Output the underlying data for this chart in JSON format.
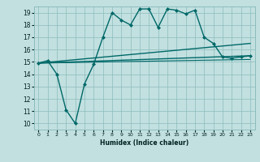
{
  "bg_color": "#c2e0e0",
  "grid_color": "#8cbcbc",
  "line_color": "#006868",
  "xlabel": "Humidex (Indice chaleur)",
  "xlim": [
    -0.5,
    23.5
  ],
  "ylim": [
    9.5,
    19.5
  ],
  "yticks": [
    10,
    11,
    12,
    13,
    14,
    15,
    16,
    17,
    18,
    19
  ],
  "xticks": [
    0,
    1,
    2,
    3,
    4,
    5,
    6,
    7,
    8,
    9,
    10,
    11,
    12,
    13,
    14,
    15,
    16,
    17,
    18,
    19,
    20,
    21,
    22,
    23
  ],
  "lines": [
    {
      "x": [
        0,
        1,
        2,
        3,
        4,
        5,
        6,
        7,
        8,
        9,
        10,
        11,
        12,
        13,
        14,
        15,
        16,
        17,
        18,
        19,
        20,
        21,
        22,
        23
      ],
      "y": [
        14.9,
        15.1,
        14.0,
        11.1,
        10.0,
        13.2,
        14.8,
        17.0,
        19.0,
        18.4,
        18.0,
        19.3,
        19.3,
        17.8,
        19.3,
        19.2,
        18.9,
        19.2,
        17.0,
        16.5,
        15.4,
        15.3,
        15.4,
        15.5
      ],
      "marker": "D",
      "markersize": 2.0,
      "linewidth": 1.0
    },
    {
      "x": [
        0,
        23
      ],
      "y": [
        14.9,
        16.5
      ],
      "marker": null,
      "markersize": 0,
      "linewidth": 1.0
    },
    {
      "x": [
        0,
        23
      ],
      "y": [
        14.9,
        15.5
      ],
      "marker": null,
      "markersize": 0,
      "linewidth": 1.0
    },
    {
      "x": [
        0,
        23
      ],
      "y": [
        14.9,
        15.2
      ],
      "marker": null,
      "markersize": 0,
      "linewidth": 0.8
    }
  ]
}
